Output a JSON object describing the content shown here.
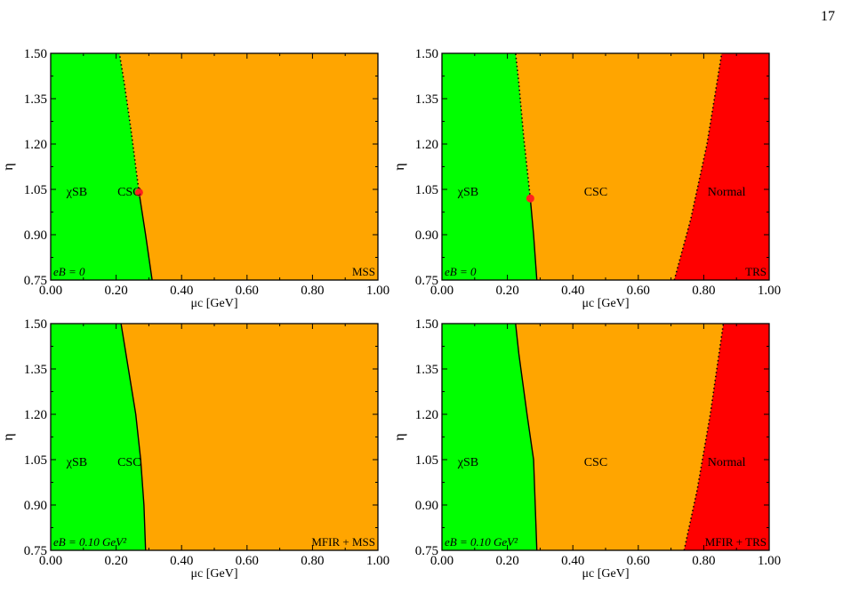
{
  "page": {
    "number": "17"
  },
  "colors": {
    "chiral": "#00ff00",
    "csc": "#ffa500",
    "normal": "#ff0000",
    "point": "#ff2020",
    "axis": "#000000"
  },
  "chart_data": [
    {
      "type": "area",
      "panel_label": "MSS",
      "field_label": "eB = 0",
      "xlabel": "μc [GeV]",
      "ylabel": "η",
      "xlim": [
        0,
        1.0
      ],
      "ylim": [
        0.75,
        1.5
      ],
      "xticks": [
        "0.00",
        "0.20",
        "0.40",
        "0.60",
        "0.80",
        "1.00"
      ],
      "yticks": [
        "0.75",
        "0.90",
        "1.05",
        "1.20",
        "1.35",
        "1.50"
      ],
      "regions": [
        {
          "name": "χSB",
          "x": 0.08,
          "y": 1.03
        },
        {
          "name": "CSC",
          "x": 0.24,
          "y": 1.03
        }
      ],
      "boundaries": [
        {
          "from": "χSB",
          "to": "CSC",
          "points": [
            [
              0.31,
              0.75
            ],
            [
              0.29,
              0.9
            ],
            [
              0.27,
              1.04
            ]
          ],
          "style": "solid"
        },
        {
          "from": "χSB",
          "to": "CSC",
          "points": [
            [
              0.27,
              1.04
            ],
            [
              0.245,
              1.25
            ],
            [
              0.225,
              1.4
            ],
            [
              0.21,
              1.5
            ]
          ],
          "style": "dotted"
        }
      ],
      "critical_point": {
        "x": 0.27,
        "y": 1.04
      }
    },
    {
      "type": "area",
      "panel_label": "TRS",
      "field_label": "eB = 0",
      "xlabel": "μc [GeV]",
      "ylabel": "η",
      "xlim": [
        0,
        1.0
      ],
      "ylim": [
        0.75,
        1.5
      ],
      "xticks": [
        "0.00",
        "0.20",
        "0.40",
        "0.60",
        "0.80",
        "1.00"
      ],
      "yticks": [
        "0.75",
        "0.90",
        "1.05",
        "1.20",
        "1.35",
        "1.50"
      ],
      "regions": [
        {
          "name": "χSB",
          "x": 0.08,
          "y": 1.03
        },
        {
          "name": "CSC",
          "x": 0.47,
          "y": 1.03
        },
        {
          "name": "Normal",
          "x": 0.87,
          "y": 1.03
        }
      ],
      "boundaries": [
        {
          "from": "χSB",
          "to": "CSC",
          "points": [
            [
              0.29,
              0.75
            ],
            [
              0.28,
              0.9
            ],
            [
              0.27,
              1.02
            ]
          ],
          "style": "solid"
        },
        {
          "from": "χSB",
          "to": "CSC",
          "points": [
            [
              0.27,
              1.02
            ],
            [
              0.25,
              1.22
            ],
            [
              0.235,
              1.4
            ],
            [
              0.225,
              1.5
            ]
          ],
          "style": "dotted"
        },
        {
          "from": "CSC",
          "to": "Normal",
          "points": [
            [
              0.71,
              0.75
            ],
            [
              0.76,
              0.95
            ],
            [
              0.81,
              1.2
            ],
            [
              0.855,
              1.5
            ]
          ],
          "style": "dotted"
        }
      ],
      "critical_point": {
        "x": 0.27,
        "y": 1.02
      }
    },
    {
      "type": "area",
      "panel_label": "MFIR + MSS",
      "field_label": "eB = 0.10 GeV²",
      "xlabel": "μc [GeV]",
      "ylabel": "η",
      "xlim": [
        0,
        1.0
      ],
      "ylim": [
        0.75,
        1.5
      ],
      "xticks": [
        "0.00",
        "0.20",
        "0.40",
        "0.60",
        "0.80",
        "1.00"
      ],
      "yticks": [
        "0.75",
        "0.90",
        "1.05",
        "1.20",
        "1.35",
        "1.50"
      ],
      "regions": [
        {
          "name": "χSB",
          "x": 0.08,
          "y": 1.03
        },
        {
          "name": "CSC",
          "x": 0.24,
          "y": 1.03
        }
      ],
      "boundaries": [
        {
          "from": "χSB",
          "to": "CSC",
          "points": [
            [
              0.29,
              0.75
            ],
            [
              0.285,
              0.9
            ],
            [
              0.275,
              1.05
            ],
            [
              0.26,
              1.2
            ],
            [
              0.23,
              1.4
            ],
            [
              0.215,
              1.5
            ]
          ],
          "style": "solid"
        }
      ]
    },
    {
      "type": "area",
      "panel_label": "MFIR + TRS",
      "field_label": "eB = 0.10 GeV²",
      "xlabel": "μc [GeV]",
      "ylabel": "η",
      "xlim": [
        0,
        1.0
      ],
      "ylim": [
        0.75,
        1.5
      ],
      "xticks": [
        "0.00",
        "0.20",
        "0.40",
        "0.60",
        "0.80",
        "1.00"
      ],
      "yticks": [
        "0.75",
        "0.90",
        "1.05",
        "1.20",
        "1.35",
        "1.50"
      ],
      "regions": [
        {
          "name": "χSB",
          "x": 0.08,
          "y": 1.03
        },
        {
          "name": "CSC",
          "x": 0.47,
          "y": 1.03
        },
        {
          "name": "Normal",
          "x": 0.87,
          "y": 1.03
        }
      ],
      "boundaries": [
        {
          "from": "χSB",
          "to": "CSC",
          "points": [
            [
              0.29,
              0.75
            ],
            [
              0.285,
              0.9
            ],
            [
              0.28,
              1.05
            ],
            [
              0.26,
              1.2
            ],
            [
              0.235,
              1.4
            ],
            [
              0.225,
              1.5
            ]
          ],
          "style": "solid"
        },
        {
          "from": "CSC",
          "to": "Normal",
          "points": [
            [
              0.74,
              0.75
            ],
            [
              0.78,
              0.95
            ],
            [
              0.82,
              1.2
            ],
            [
              0.86,
              1.5
            ]
          ],
          "style": "dotted"
        }
      ]
    }
  ]
}
